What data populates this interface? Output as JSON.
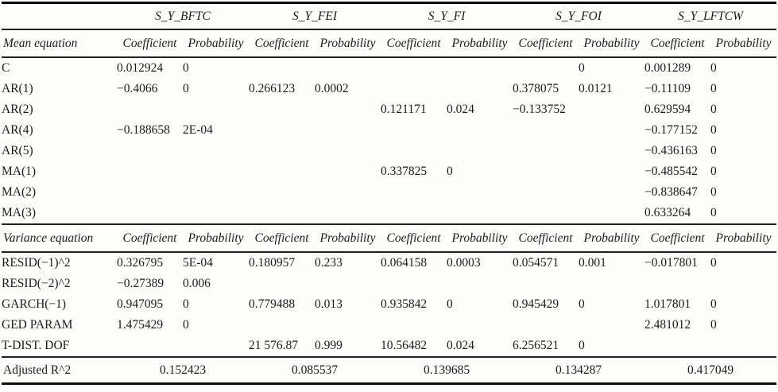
{
  "table": {
    "group_headers": [
      "S_Y_BFTC",
      "S_Y_FEI",
      "S_Y_FI",
      "S_Y_FOI",
      "S_Y_LFTCW"
    ],
    "value_headers": [
      "Coefficient",
      "Probability"
    ],
    "sections": [
      {
        "label": "Mean equation",
        "rows": [
          {
            "label": "C",
            "values": [
              "0.012924",
              "0",
              "",
              "",
              "",
              "",
              "",
              "0",
              "0.001289",
              "0"
            ]
          },
          {
            "label": "AR(1)",
            "values": [
              "−0.4066",
              "0",
              "0.266123",
              "0.0002",
              "",
              "",
              "0.378075",
              "0.0121",
              "−0.11109",
              "0"
            ]
          },
          {
            "label": "AR(2)",
            "values": [
              "",
              "",
              "",
              "",
              "0.121171",
              "0.024",
              "−0.133752",
              "",
              "0.629594",
              "0"
            ]
          },
          {
            "label": "AR(4)",
            "values": [
              "−0.188658",
              "2E-04",
              "",
              "",
              "",
              "",
              "",
              "",
              "−0.177152",
              "0"
            ]
          },
          {
            "label": "AR(5)",
            "values": [
              "",
              "",
              "",
              "",
              "",
              "",
              "",
              "",
              "−0.436163",
              "0"
            ]
          },
          {
            "label": "MA(1)",
            "values": [
              "",
              "",
              "",
              "",
              "0.337825",
              "0",
              "",
              "",
              "−0.485542",
              "0"
            ]
          },
          {
            "label": "MA(2)",
            "values": [
              "",
              "",
              "",
              "",
              "",
              "",
              "",
              "",
              "−0.838647",
              "0"
            ]
          },
          {
            "label": "MA(3)",
            "values": [
              "",
              "",
              "",
              "",
              "",
              "",
              "",
              "",
              "0.633264",
              "0"
            ]
          }
        ]
      },
      {
        "label": "Variance equation",
        "rows": [
          {
            "label": "RESID(−1)^2",
            "values": [
              "0.326795",
              "5E-04",
              "0.180957",
              "0.233",
              "0.064158",
              "0.0003",
              "0.054571",
              "0.001",
              "−0.017801",
              "0"
            ]
          },
          {
            "label": "RESID(−2)^2",
            "values": [
              "−0.27389",
              "0.006",
              "",
              "",
              "",
              "",
              "",
              "",
              "",
              ""
            ]
          },
          {
            "label": "GARCH(−1)",
            "values": [
              "0.947095",
              "0",
              "0.779488",
              "0.013",
              "0.935842",
              "0",
              "0.945429",
              "0",
              "1.017801",
              "0"
            ]
          },
          {
            "label": "GED PARAM",
            "values": [
              "1.475429",
              "0",
              "",
              "",
              "",
              "",
              "",
              "",
              "2.481012",
              "0"
            ]
          },
          {
            "label": "T-DIST. DOF",
            "values": [
              "",
              "",
              "21 576.87",
              "0.999",
              "10.56482",
              "0.024",
              "6.256521",
              "0",
              "",
              ""
            ]
          }
        ]
      }
    ],
    "footer": {
      "label": "Adjusted R^2",
      "values": [
        "0.152423",
        "0.085537",
        "0.139685",
        "0.134287",
        "0.417049"
      ]
    }
  }
}
